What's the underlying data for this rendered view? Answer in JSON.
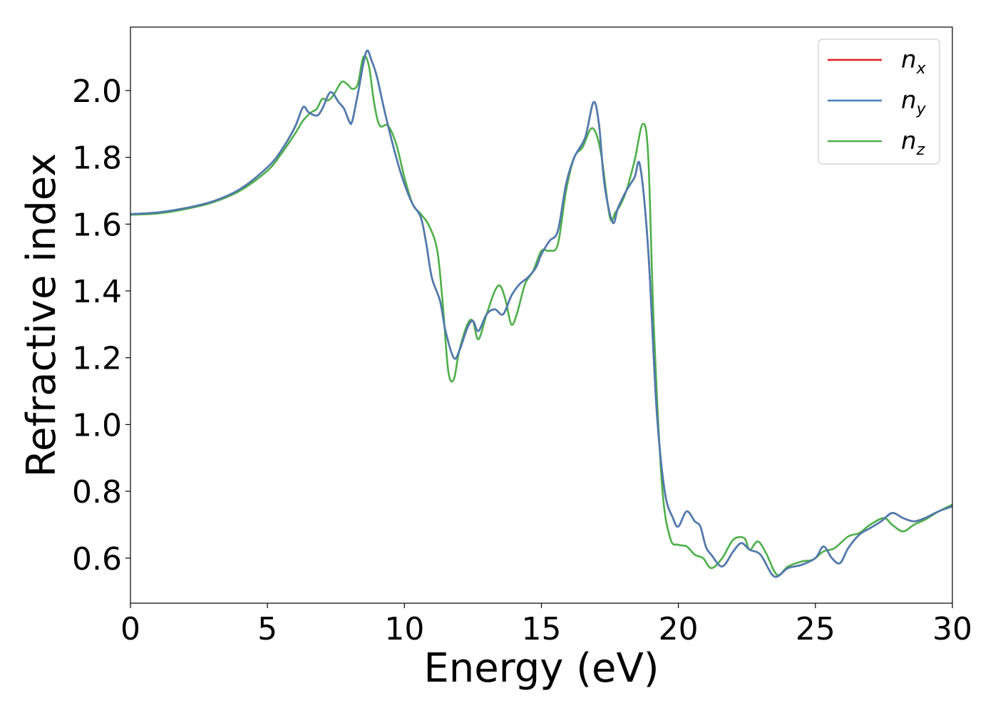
{
  "chart_data": {
    "type": "line",
    "title": "",
    "xlabel": "Energy (eV)",
    "ylabel": "Refractive index",
    "xlim": [
      0,
      30
    ],
    "ylim": [
      0.465,
      2.19
    ],
    "xticks": [
      0,
      5,
      10,
      15,
      20,
      25,
      30
    ],
    "xtick_labels": [
      "0",
      "5",
      "10",
      "15",
      "20",
      "25",
      "30"
    ],
    "yticks": [
      0.6,
      0.8,
      1.0,
      1.2,
      1.4,
      1.6,
      1.8,
      2.0
    ],
    "ytick_labels": [
      "0.6",
      "0.8",
      "1.0",
      "1.2",
      "1.4",
      "1.6",
      "1.8",
      "2.0"
    ],
    "grid": false,
    "legend_position": "top-right",
    "series": [
      {
        "name": "n_x",
        "label_base": "n",
        "label_sub": "x",
        "color": "#e41a1c",
        "points": [
          [
            0,
            1.63
          ],
          [
            1,
            1.635
          ],
          [
            2,
            1.648
          ],
          [
            3,
            1.668
          ],
          [
            4,
            1.705
          ],
          [
            5,
            1.77
          ],
          [
            5.5,
            1.82
          ],
          [
            6,
            1.89
          ],
          [
            6.3,
            1.95
          ],
          [
            6.5,
            1.935
          ],
          [
            6.8,
            1.925
          ],
          [
            7.0,
            1.945
          ],
          [
            7.3,
            1.995
          ],
          [
            7.6,
            1.965
          ],
          [
            7.8,
            1.945
          ],
          [
            8.0,
            1.905
          ],
          [
            8.1,
            1.91
          ],
          [
            8.3,
            1.99
          ],
          [
            8.6,
            2.115
          ],
          [
            8.8,
            2.09
          ],
          [
            9.0,
            2.04
          ],
          [
            9.3,
            1.93
          ],
          [
            9.7,
            1.8
          ],
          [
            10.0,
            1.72
          ],
          [
            10.3,
            1.66
          ],
          [
            10.6,
            1.62
          ],
          [
            10.8,
            1.54
          ],
          [
            11.0,
            1.44
          ],
          [
            11.3,
            1.37
          ],
          [
            11.5,
            1.28
          ],
          [
            11.8,
            1.2
          ],
          [
            12.0,
            1.22
          ],
          [
            12.3,
            1.29
          ],
          [
            12.5,
            1.31
          ],
          [
            12.7,
            1.28
          ],
          [
            13.0,
            1.33
          ],
          [
            13.3,
            1.345
          ],
          [
            13.6,
            1.33
          ],
          [
            13.9,
            1.385
          ],
          [
            14.2,
            1.42
          ],
          [
            14.5,
            1.44
          ],
          [
            14.8,
            1.47
          ],
          [
            15.0,
            1.51
          ],
          [
            15.3,
            1.55
          ],
          [
            15.6,
            1.58
          ],
          [
            15.9,
            1.72
          ],
          [
            16.2,
            1.8
          ],
          [
            16.6,
            1.86
          ],
          [
            16.9,
            1.965
          ],
          [
            17.1,
            1.9
          ],
          [
            17.3,
            1.72
          ],
          [
            17.6,
            1.605
          ],
          [
            17.8,
            1.65
          ],
          [
            18.1,
            1.7
          ],
          [
            18.4,
            1.74
          ],
          [
            18.6,
            1.775
          ],
          [
            18.9,
            1.52
          ],
          [
            19.2,
            1.05
          ],
          [
            19.5,
            0.8
          ],
          [
            19.8,
            0.72
          ],
          [
            20.0,
            0.695
          ],
          [
            20.3,
            0.74
          ],
          [
            20.6,
            0.71
          ],
          [
            20.8,
            0.695
          ],
          [
            21.0,
            0.635
          ],
          [
            21.2,
            0.61
          ],
          [
            21.6,
            0.575
          ],
          [
            22.0,
            0.62
          ],
          [
            22.3,
            0.645
          ],
          [
            22.6,
            0.625
          ],
          [
            23.0,
            0.61
          ],
          [
            23.5,
            0.545
          ],
          [
            24.0,
            0.57
          ],
          [
            24.5,
            0.58
          ],
          [
            25.0,
            0.6
          ],
          [
            25.3,
            0.635
          ],
          [
            25.6,
            0.6
          ],
          [
            25.9,
            0.585
          ],
          [
            26.2,
            0.63
          ],
          [
            26.6,
            0.67
          ],
          [
            27.0,
            0.69
          ],
          [
            27.4,
            0.71
          ],
          [
            27.8,
            0.735
          ],
          [
            28.2,
            0.72
          ],
          [
            28.6,
            0.71
          ],
          [
            29.0,
            0.72
          ],
          [
            29.5,
            0.74
          ],
          [
            30.0,
            0.755
          ]
        ]
      },
      {
        "name": "n_y",
        "label_base": "n",
        "label_sub": "y",
        "color": "#4a7db3",
        "points": [
          [
            0,
            1.63
          ],
          [
            1,
            1.635
          ],
          [
            2,
            1.648
          ],
          [
            3,
            1.668
          ],
          [
            4,
            1.705
          ],
          [
            5,
            1.77
          ],
          [
            5.5,
            1.82
          ],
          [
            6,
            1.89
          ],
          [
            6.3,
            1.95
          ],
          [
            6.5,
            1.935
          ],
          [
            6.8,
            1.925
          ],
          [
            7.0,
            1.945
          ],
          [
            7.3,
            1.995
          ],
          [
            7.6,
            1.965
          ],
          [
            7.8,
            1.945
          ],
          [
            8.0,
            1.905
          ],
          [
            8.1,
            1.91
          ],
          [
            8.3,
            1.99
          ],
          [
            8.6,
            2.115
          ],
          [
            8.8,
            2.09
          ],
          [
            9.0,
            2.04
          ],
          [
            9.3,
            1.93
          ],
          [
            9.7,
            1.8
          ],
          [
            10.0,
            1.72
          ],
          [
            10.3,
            1.66
          ],
          [
            10.6,
            1.62
          ],
          [
            10.8,
            1.54
          ],
          [
            11.0,
            1.44
          ],
          [
            11.3,
            1.37
          ],
          [
            11.5,
            1.28
          ],
          [
            11.8,
            1.2
          ],
          [
            12.0,
            1.22
          ],
          [
            12.3,
            1.29
          ],
          [
            12.5,
            1.31
          ],
          [
            12.7,
            1.28
          ],
          [
            13.0,
            1.33
          ],
          [
            13.3,
            1.345
          ],
          [
            13.6,
            1.33
          ],
          [
            13.9,
            1.385
          ],
          [
            14.2,
            1.42
          ],
          [
            14.5,
            1.44
          ],
          [
            14.8,
            1.47
          ],
          [
            15.0,
            1.51
          ],
          [
            15.3,
            1.55
          ],
          [
            15.6,
            1.58
          ],
          [
            15.9,
            1.72
          ],
          [
            16.2,
            1.8
          ],
          [
            16.6,
            1.86
          ],
          [
            16.9,
            1.965
          ],
          [
            17.1,
            1.9
          ],
          [
            17.3,
            1.72
          ],
          [
            17.6,
            1.605
          ],
          [
            17.8,
            1.65
          ],
          [
            18.1,
            1.7
          ],
          [
            18.4,
            1.74
          ],
          [
            18.6,
            1.775
          ],
          [
            18.9,
            1.52
          ],
          [
            19.2,
            1.05
          ],
          [
            19.5,
            0.8
          ],
          [
            19.8,
            0.72
          ],
          [
            20.0,
            0.695
          ],
          [
            20.3,
            0.74
          ],
          [
            20.6,
            0.71
          ],
          [
            20.8,
            0.695
          ],
          [
            21.0,
            0.635
          ],
          [
            21.2,
            0.61
          ],
          [
            21.6,
            0.575
          ],
          [
            22.0,
            0.62
          ],
          [
            22.3,
            0.645
          ],
          [
            22.6,
            0.625
          ],
          [
            23.0,
            0.61
          ],
          [
            23.5,
            0.545
          ],
          [
            24.0,
            0.57
          ],
          [
            24.5,
            0.58
          ],
          [
            25.0,
            0.6
          ],
          [
            25.3,
            0.635
          ],
          [
            25.6,
            0.6
          ],
          [
            25.9,
            0.585
          ],
          [
            26.2,
            0.63
          ],
          [
            26.6,
            0.67
          ],
          [
            27.0,
            0.69
          ],
          [
            27.4,
            0.71
          ],
          [
            27.8,
            0.735
          ],
          [
            28.2,
            0.72
          ],
          [
            28.6,
            0.71
          ],
          [
            29.0,
            0.72
          ],
          [
            29.5,
            0.74
          ],
          [
            30.0,
            0.755
          ]
        ]
      },
      {
        "name": "n_z",
        "label_base": "n",
        "label_sub": "z",
        "color": "#4daf4a",
        "points": [
          [
            0,
            1.628
          ],
          [
            1,
            1.632
          ],
          [
            2,
            1.645
          ],
          [
            3,
            1.665
          ],
          [
            4,
            1.7
          ],
          [
            5,
            1.76
          ],
          [
            5.5,
            1.81
          ],
          [
            6,
            1.87
          ],
          [
            6.3,
            1.91
          ],
          [
            6.6,
            1.935
          ],
          [
            6.8,
            1.945
          ],
          [
            7.0,
            1.975
          ],
          [
            7.2,
            1.97
          ],
          [
            7.4,
            1.985
          ],
          [
            7.7,
            2.025
          ],
          [
            7.9,
            2.02
          ],
          [
            8.1,
            2.005
          ],
          [
            8.3,
            2.02
          ],
          [
            8.5,
            2.1
          ],
          [
            8.7,
            2.075
          ],
          [
            8.9,
            1.96
          ],
          [
            9.1,
            1.895
          ],
          [
            9.4,
            1.895
          ],
          [
            9.7,
            1.84
          ],
          [
            10.0,
            1.74
          ],
          [
            10.3,
            1.66
          ],
          [
            10.6,
            1.63
          ],
          [
            10.9,
            1.595
          ],
          [
            11.2,
            1.52
          ],
          [
            11.4,
            1.36
          ],
          [
            11.6,
            1.16
          ],
          [
            11.8,
            1.135
          ],
          [
            12.0,
            1.22
          ],
          [
            12.3,
            1.3
          ],
          [
            12.5,
            1.31
          ],
          [
            12.7,
            1.255
          ],
          [
            13.0,
            1.33
          ],
          [
            13.3,
            1.4
          ],
          [
            13.5,
            1.415
          ],
          [
            13.7,
            1.37
          ],
          [
            13.9,
            1.3
          ],
          [
            14.1,
            1.33
          ],
          [
            14.4,
            1.42
          ],
          [
            14.7,
            1.46
          ],
          [
            15.0,
            1.52
          ],
          [
            15.3,
            1.52
          ],
          [
            15.6,
            1.54
          ],
          [
            15.9,
            1.7
          ],
          [
            16.2,
            1.8
          ],
          [
            16.5,
            1.83
          ],
          [
            16.8,
            1.885
          ],
          [
            17.0,
            1.87
          ],
          [
            17.2,
            1.8
          ],
          [
            17.5,
            1.62
          ],
          [
            17.7,
            1.635
          ],
          [
            17.9,
            1.66
          ],
          [
            18.1,
            1.7
          ],
          [
            18.4,
            1.79
          ],
          [
            18.7,
            1.9
          ],
          [
            18.9,
            1.8
          ],
          [
            19.1,
            1.3
          ],
          [
            19.4,
            0.82
          ],
          [
            19.7,
            0.66
          ],
          [
            20.0,
            0.64
          ],
          [
            20.3,
            0.635
          ],
          [
            20.6,
            0.61
          ],
          [
            20.9,
            0.6
          ],
          [
            21.2,
            0.57
          ],
          [
            21.6,
            0.6
          ],
          [
            22.0,
            0.655
          ],
          [
            22.4,
            0.66
          ],
          [
            22.6,
            0.625
          ],
          [
            22.9,
            0.65
          ],
          [
            23.2,
            0.615
          ],
          [
            23.6,
            0.55
          ],
          [
            24.0,
            0.575
          ],
          [
            24.5,
            0.59
          ],
          [
            24.9,
            0.595
          ],
          [
            25.3,
            0.62
          ],
          [
            25.7,
            0.63
          ],
          [
            26.2,
            0.665
          ],
          [
            26.6,
            0.675
          ],
          [
            27.0,
            0.7
          ],
          [
            27.5,
            0.72
          ],
          [
            27.8,
            0.7
          ],
          [
            28.2,
            0.68
          ],
          [
            28.6,
            0.7
          ],
          [
            29.0,
            0.715
          ],
          [
            29.5,
            0.74
          ],
          [
            30.0,
            0.76
          ]
        ]
      }
    ]
  }
}
